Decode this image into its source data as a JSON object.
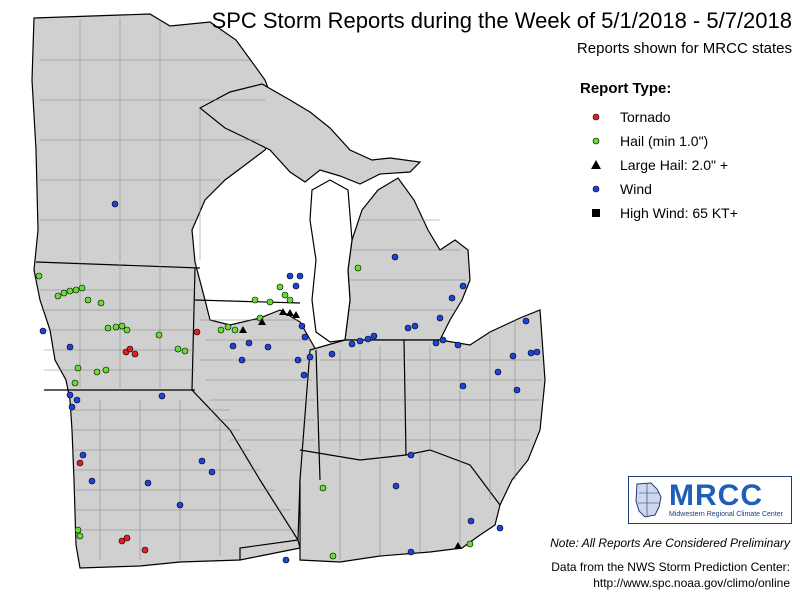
{
  "title": "SPC Storm Reports during the Week of 5/1/2018 - 5/7/2018",
  "subtitle": "Reports shown for MRCC states",
  "legend": {
    "title": "Report Type:",
    "items": [
      {
        "label": "Tornado",
        "symbol": "circle",
        "color": "#e02020"
      },
      {
        "label": "Hail (min 1.0\")",
        "symbol": "circle",
        "color": "#66dd33"
      },
      {
        "label": "Large Hail: 2.0\" +",
        "symbol": "triangle",
        "color": "#000000"
      },
      {
        "label": "Wind",
        "symbol": "circle",
        "color": "#1a44dd"
      },
      {
        "label": "High Wind: 65 KT+",
        "symbol": "square",
        "color": "#000000"
      }
    ]
  },
  "note": "Note: All Reports Are Considered Preliminary",
  "credit_line1": "Data from the NWS Storm Prediction Center:",
  "credit_line2": "http://www.spc.noaa.gov/climo/online",
  "logo": {
    "text": "MRCC",
    "subtitle": "Midwestern Regional Climate Center"
  },
  "colors": {
    "land": "#d0d0d0",
    "water": "#ffffff",
    "border": "#808080",
    "state_border": "#000000"
  }
}
